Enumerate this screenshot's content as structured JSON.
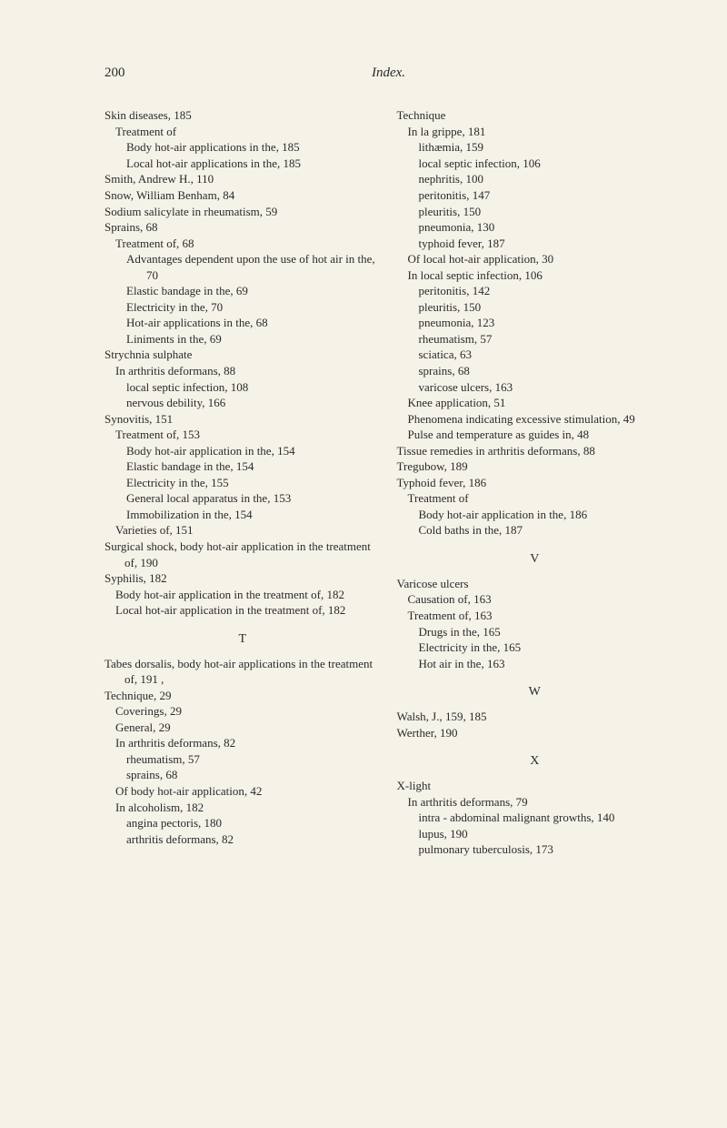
{
  "header": {
    "page_num": "200",
    "title": "Index."
  },
  "left": {
    "e1": "Skin diseases, 185",
    "e2": "Treatment of",
    "e3": "Body hot-air applications in the, 185",
    "e4": "Local hot-air applications in the, 185",
    "e5": "Smith, Andrew H., 110",
    "e6": "Snow, William Benham, 84",
    "e7": "Sodium salicylate in rheumatism, 59",
    "e8": "Sprains, 68",
    "e9": "Treatment of, 68",
    "e10": "Advantages dependent upon the use of hot air in the, 70",
    "e11": "Elastic bandage in the, 69",
    "e12": "Electricity in the, 70",
    "e13": "Hot-air applications in the, 68",
    "e14": "Liniments in the, 69",
    "e15": "Strychnia sulphate",
    "e16": "In arthritis deformans, 88",
    "e17": "local septic infection, 108",
    "e18": "nervous debility, 166",
    "e19": "Synovitis, 151",
    "e20": "Treatment of, 153",
    "e21": "Body hot-air application in the, 154",
    "e22": "Elastic bandage in the, 154",
    "e23": "Electricity in the, 155",
    "e24": "General local apparatus in the, 153",
    "e25": "Immobilization in the, 154",
    "e26": "Varieties of, 151",
    "e27": "Surgical shock, body hot-air application in the treatment of, 190",
    "e28": "Syphilis, 182",
    "e29": "Body hot-air application in the treatment of, 182",
    "e30": "Local hot-air application in the treatment of, 182",
    "letterT": "T",
    "e31": "Tabes dorsalis, body hot-air applications in the treatment of, 191 ,",
    "e32": "Technique, 29",
    "e33": "Coverings, 29",
    "e34": "General, 29",
    "e35": "In arthritis deformans, 82",
    "e36": "rheumatism, 57",
    "e37": "sprains, 68",
    "e38": "Of body hot-air application, 42",
    "e39": "In alcoholism, 182",
    "e40": "angina pectoris, 180",
    "e41": "arthritis deformans, 82"
  },
  "right": {
    "e1": "Technique",
    "e2": "In la grippe, 181",
    "e3": "lithæmia, 159",
    "e4": "local septic infection, 106",
    "e5": "nephritis, 100",
    "e6": "peritonitis, 147",
    "e7": "pleuritis, 150",
    "e8": "pneumonia, 130",
    "e9": "typhoid fever, 187",
    "e10": "Of local hot-air application, 30",
    "e11": "In local septic infection, 106",
    "e12": "peritonitis, 142",
    "e13": "pleuritis, 150",
    "e14": "pneumonia, 123",
    "e15": "rheumatism, 57",
    "e16": "sciatica, 63",
    "e17": "sprains, 68",
    "e18": "varicose ulcers, 163",
    "e19": "Knee application, 51",
    "e20": "Phenomena indicating excessive stimulation, 49",
    "e21": "Pulse and temperature as guides in, 48",
    "e22": "Tissue remedies in arthritis deformans, 88",
    "e23": "Tregubow, 189",
    "e24": "Typhoid fever, 186",
    "e25": "Treatment of",
    "e26": "Body hot-air application in the, 186",
    "e27": "Cold baths in the, 187",
    "letterV": "V",
    "e28": "Varicose ulcers",
    "e29": "Causation of, 163",
    "e30": "Treatment of, 163",
    "e31": "Drugs in the, 165",
    "e32": "Electricity in the, 165",
    "e33": "Hot air in the, 163",
    "letterW": "W",
    "e34": "Walsh, J., 159, 185",
    "e35": "Werther, 190",
    "letterX": "X",
    "e36": "X-light",
    "e37": "In arthritis deformans, 79",
    "e38": "intra - abdominal malignant growths, 140",
    "e39": "lupus, 190",
    "e40": "pulmonary tuberculosis, 173"
  }
}
